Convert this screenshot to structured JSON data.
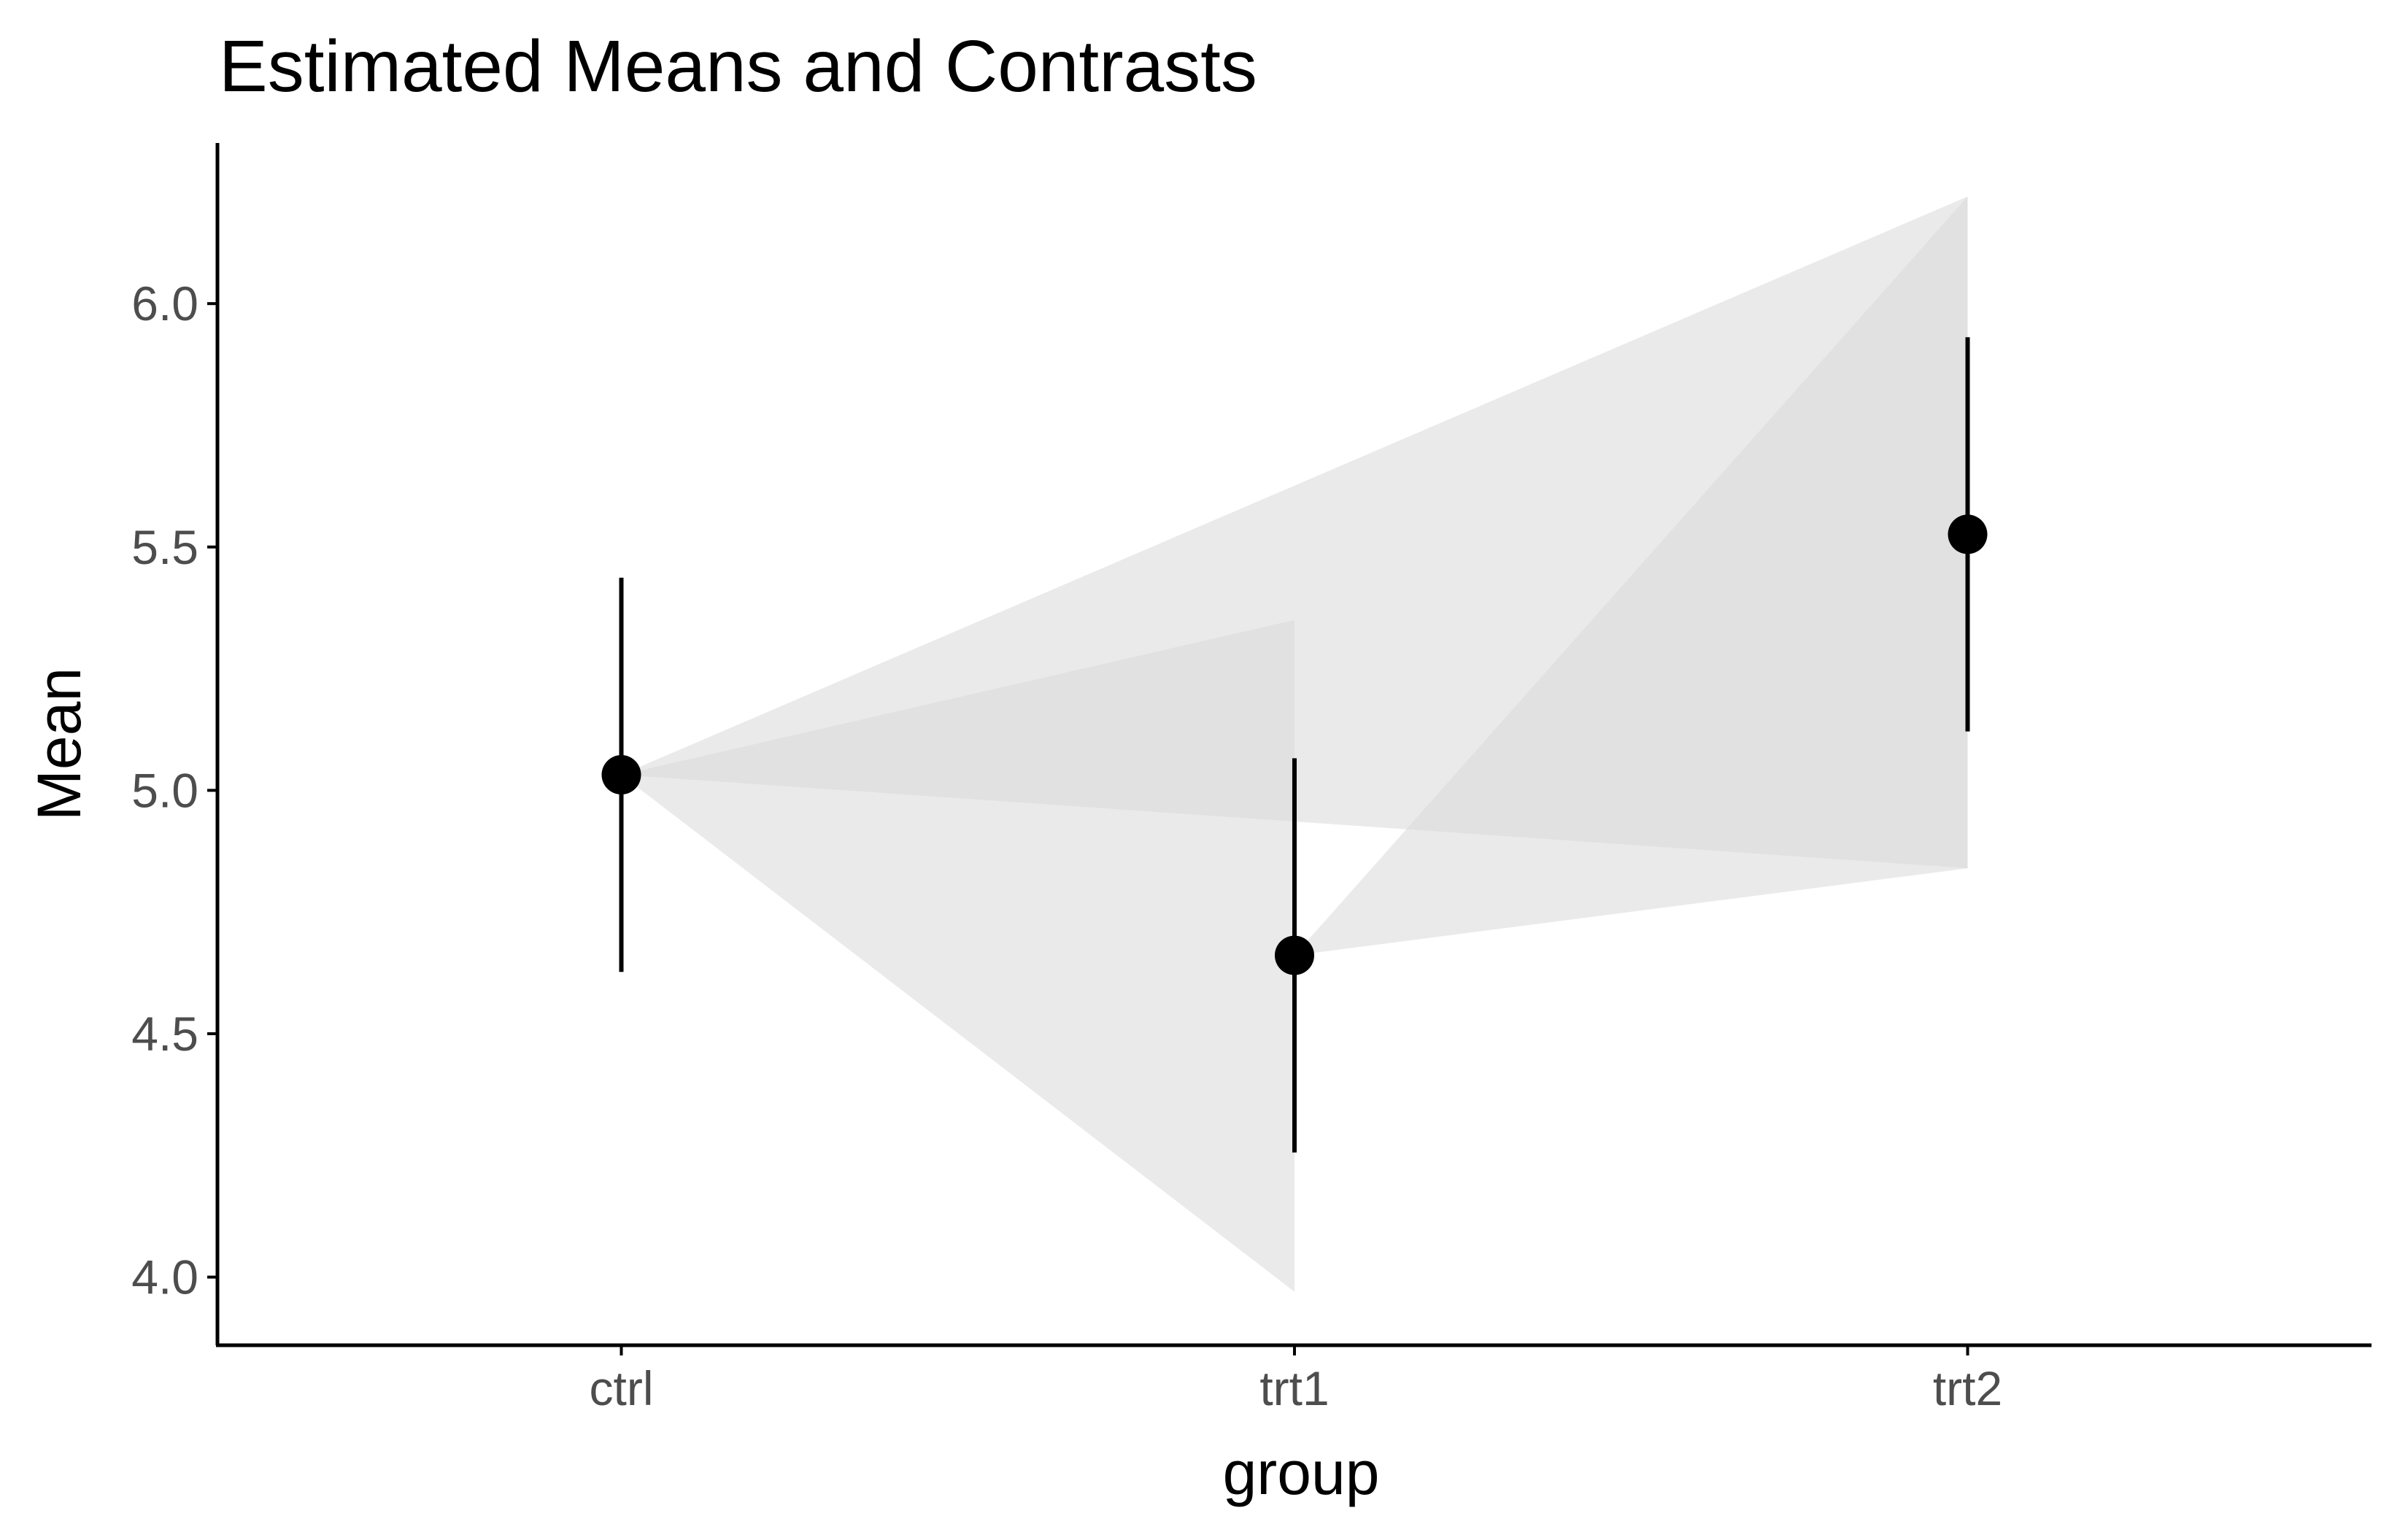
{
  "chart_data": {
    "type": "scatter",
    "title": "Estimated Means and Contrasts",
    "xlabel": "group",
    "ylabel": "Mean",
    "categories": [
      "ctrl",
      "trt1",
      "trt2"
    ],
    "ylim": [
      3.86,
      6.33
    ],
    "y_ticks": [
      "4.0",
      "4.5",
      "5.0",
      "5.5",
      "6.0"
    ],
    "grid": false,
    "legend": "none",
    "points": [
      {
        "group": "ctrl",
        "mean": 5.032,
        "ci_low": 4.627,
        "ci_high": 5.437
      },
      {
        "group": "trt1",
        "mean": 4.661,
        "ci_low": 4.256,
        "ci_high": 5.066
      },
      {
        "group": "trt2",
        "mean": 5.526,
        "ci_low": 5.121,
        "ci_high": 5.931
      }
    ],
    "contrasts": [
      {
        "from": "ctrl",
        "to": "trt1",
        "ci_low": 3.97,
        "ci_high": 5.35
      },
      {
        "from": "ctrl",
        "to": "trt2",
        "ci_low": 4.84,
        "ci_high": 6.22
      },
      {
        "from": "trt1",
        "to": "trt2",
        "ci_low": 4.84,
        "ci_high": 6.22
      }
    ],
    "colors": {
      "points": "#000000",
      "ribbon": "#d9d9d9",
      "axis": "#000000",
      "tick_text": "#4d4d4d"
    }
  }
}
